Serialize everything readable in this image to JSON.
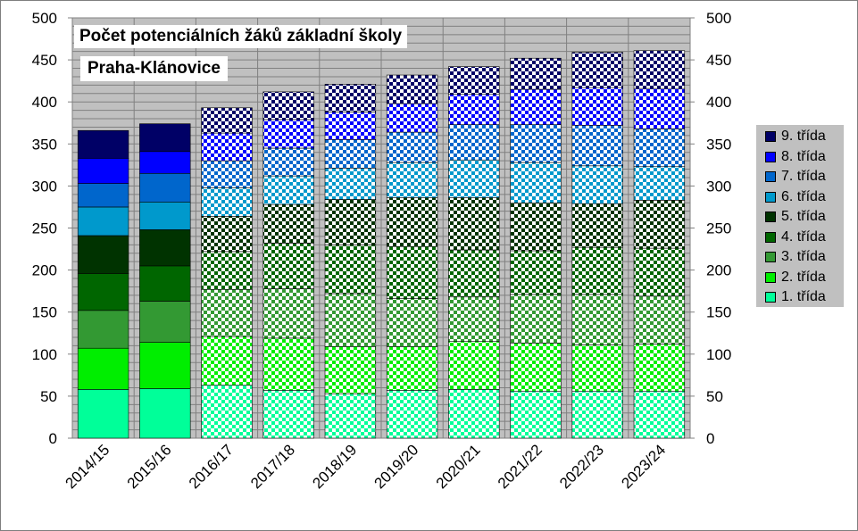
{
  "title_line1": "Počet potenciálních žáků základní školy",
  "title_line2": "Praha-Klánovice",
  "chart_data": {
    "type": "bar",
    "stacked": true,
    "ylim": [
      0,
      500
    ],
    "y_ticks": [
      0,
      50,
      100,
      150,
      200,
      250,
      300,
      350,
      400,
      450,
      500
    ],
    "secondary_axis": true,
    "grid": true,
    "legend_position": "right",
    "categories": [
      "2014/15",
      "2015/16",
      "2016/17",
      "2017/18",
      "2018/19",
      "2019/20",
      "2020/21",
      "2021/22",
      "2022/23",
      "2023/24"
    ],
    "actual_count": 2,
    "series": [
      {
        "name": "1. třída",
        "color": "#00ff99",
        "values": [
          58,
          59,
          63,
          57,
          53,
          57,
          58,
          56,
          56,
          56
        ]
      },
      {
        "name": "2. třída",
        "color": "#00ee00",
        "values": [
          49,
          55,
          58,
          62,
          56,
          52,
          57,
          57,
          55,
          56
        ]
      },
      {
        "name": "3. třída",
        "color": "#339933",
        "values": [
          45,
          49,
          56,
          59,
          63,
          57,
          53,
          58,
          60,
          57
        ]
      },
      {
        "name": "4. třída",
        "color": "#006600",
        "values": [
          44,
          42,
          45,
          54,
          58,
          62,
          56,
          52,
          56,
          57
        ]
      },
      {
        "name": "5. třída",
        "color": "#003300",
        "values": [
          45,
          43,
          42,
          46,
          54,
          58,
          62,
          57,
          52,
          57
        ]
      },
      {
        "name": "6. třída",
        "color": "#0099cc",
        "values": [
          34,
          33,
          34,
          34,
          37,
          42,
          45,
          48,
          45,
          40
        ]
      },
      {
        "name": "7. třída",
        "color": "#0066cc",
        "values": [
          28,
          34,
          32,
          33,
          34,
          36,
          42,
          45,
          48,
          45
        ]
      },
      {
        "name": "8. třída",
        "color": "#0000ff",
        "values": [
          30,
          26,
          33,
          34,
          33,
          34,
          36,
          42,
          45,
          48
        ]
      },
      {
        "name": "9. třída",
        "color": "#000066",
        "values": [
          33,
          33,
          30,
          33,
          33,
          34,
          33,
          37,
          42,
          45
        ]
      }
    ]
  }
}
